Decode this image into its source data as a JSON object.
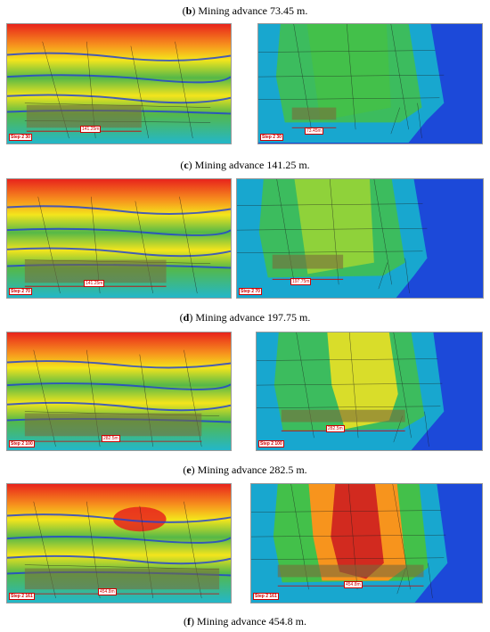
{
  "figure": {
    "panels": [
      {
        "letter": "b",
        "caption": " Mining advance 73.45 m.",
        "step_left": "Step 2 30",
        "dist_left": "141.25m",
        "step_right": "Step 2 30",
        "dist_right": "73.45m"
      },
      {
        "letter": "c",
        "caption": " Mining advance 141.25 m.",
        "step_left": "Step 2 70",
        "dist_left": "141.25m",
        "step_right": "Step 2 70",
        "dist_right": "197.75m"
      },
      {
        "letter": "d",
        "caption": " Mining advance 197.75 m.",
        "step_left": "Step 2 100",
        "dist_left": "282.5m",
        "step_right": "Step 2 100",
        "dist_right": "282.5m"
      },
      {
        "letter": "e",
        "caption": " Mining advance 282.5 m.",
        "step_left": "Step 2 161",
        "dist_left": "454.8m",
        "step_right": "Step 2 161",
        "dist_right": "454.8m"
      },
      {
        "letter": "f",
        "caption": " Mining advance 454.8 m.",
        "step_left": "",
        "dist_left": "",
        "step_right": "",
        "dist_right": ""
      }
    ]
  },
  "colors": {
    "stress_red": "#e8231c",
    "stress_orange": "#f7941d",
    "stress_yellow": "#f4e51c",
    "stress_green": "#55b848",
    "stress_cyan": "#23b7c9",
    "stress_blue": "#1f3fd6",
    "disp_blue": "#1c49d9",
    "disp_cyan": "#18a7cf",
    "disp_green": "#43c04a",
    "disp_yellow": "#d9dd2a",
    "disp_red": "#d22a1f",
    "fracture": "#1b1b1b"
  }
}
